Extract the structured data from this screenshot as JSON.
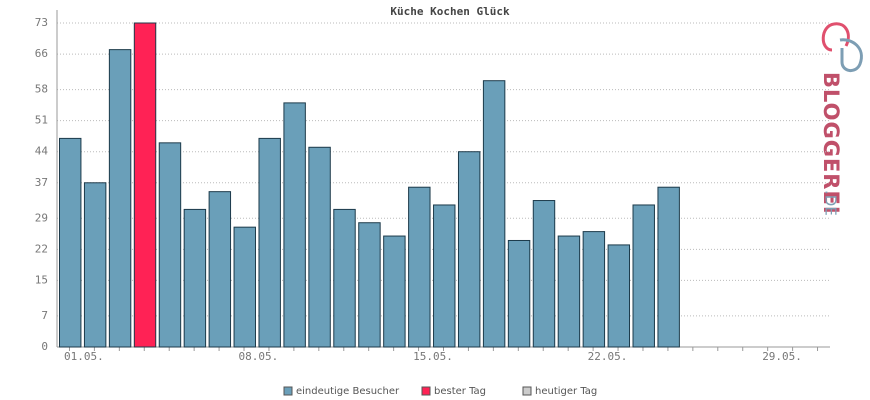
{
  "chart_data": {
    "type": "bar",
    "title": "Küche Kochen Glück",
    "categories": [
      "01.05.",
      null,
      null,
      null,
      null,
      null,
      null,
      "08.05.",
      null,
      null,
      null,
      null,
      null,
      null,
      "15.05.",
      null,
      null,
      null,
      null,
      null,
      null,
      "22.05.",
      null,
      null,
      null,
      null,
      null,
      null,
      "29.05.",
      null,
      null
    ],
    "series": [
      {
        "name": "eindeutige Besucher",
        "color": "#6a9fb9",
        "values": [
          47,
          37,
          67,
          null,
          46,
          31,
          35,
          27,
          47,
          55,
          45,
          31,
          28,
          25,
          36,
          32,
          44,
          60,
          24,
          33,
          25,
          26,
          23,
          32,
          36,
          null,
          null,
          null,
          null,
          null,
          null
        ]
      },
      {
        "name": "bester Tag",
        "color": "#ff2255",
        "values": [
          null,
          null,
          null,
          73,
          null,
          null,
          null,
          null,
          null,
          null,
          null,
          null,
          null,
          null,
          null,
          null,
          null,
          null,
          null,
          null,
          null,
          null,
          null,
          null,
          null,
          null,
          null,
          null,
          null,
          null,
          null
        ]
      },
      {
        "name": "heutiger Tag",
        "color": "#cccccc",
        "values": [
          null,
          null,
          null,
          null,
          null,
          null,
          null,
          null,
          null,
          null,
          null,
          null,
          null,
          null,
          null,
          null,
          null,
          null,
          null,
          null,
          null,
          null,
          null,
          null,
          null,
          null,
          null,
          null,
          null,
          null,
          null
        ]
      }
    ],
    "ylim": [
      0,
      73
    ],
    "yticks": [
      0,
      7,
      15,
      22,
      29,
      37,
      44,
      51,
      58,
      66,
      73
    ],
    "grid": true,
    "logo": {
      "main": "BLOGGEREI",
      "suffix": ".DE"
    }
  }
}
